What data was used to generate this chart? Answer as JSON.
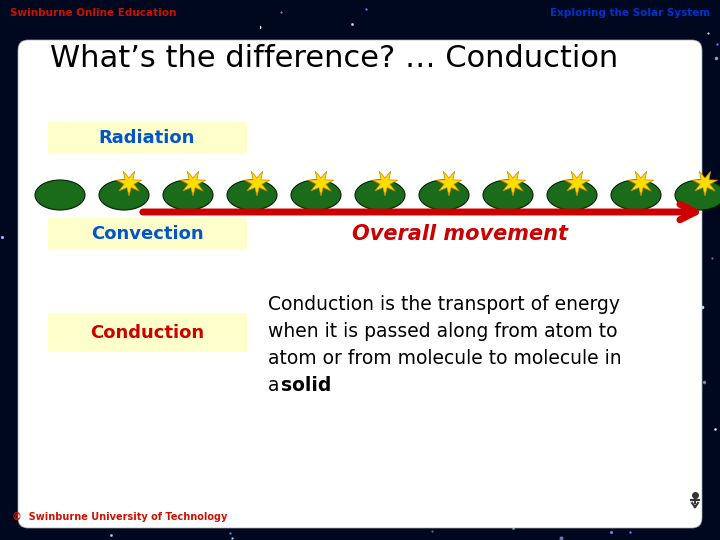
{
  "title": "What’s the difference? … Conduction",
  "title_fontsize": 22,
  "title_color": "#000000",
  "bg_color": "#000820",
  "slide_bg": "#ffffff",
  "header_left": "Swinburne Online Education",
  "header_right": "Exploring the Solar System",
  "header_left_color": "#cc1100",
  "header_right_color": "#0033cc",
  "footer_text": "©  Swinburne University of Technology",
  "footer_color": "#cc1100",
  "labels": [
    "Radiation",
    "Convection",
    "Conduction"
  ],
  "label_colors": [
    "#0055cc",
    "#0055cc",
    "#cc0000"
  ],
  "label_bg": "#ffffcc",
  "overall_movement_text": "Overall movement",
  "overall_movement_color": "#cc0000",
  "desc_line1": "Conduction is the transport of energy",
  "desc_line2": "when it is passed along from atom to",
  "desc_line3": "atom or from molecule to molecule in",
  "desc_line4a": "a ",
  "desc_line4b": "solid",
  "desc_line4c": ".",
  "arrow_color": "#cc0000",
  "molecule_body_color": "#1a6b1a",
  "molecule_energy_color": "#ffdd00",
  "molecule_energy_edge": "#cc8800",
  "n_molecules": 11
}
